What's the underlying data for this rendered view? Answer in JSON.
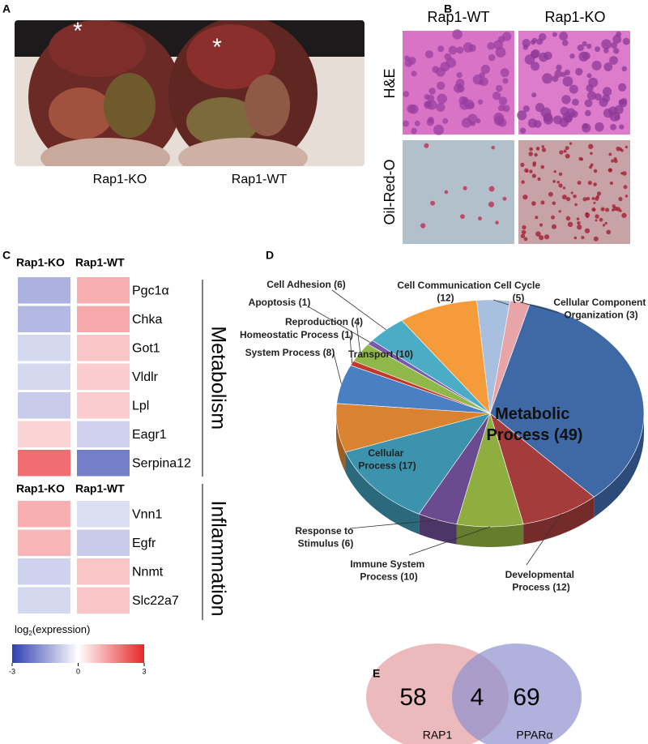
{
  "panel_a": {
    "letter": "A",
    "labels": [
      "Rap1-KO",
      "Rap1-WT"
    ],
    "markers": [
      "*",
      "*"
    ]
  },
  "panel_b": {
    "letter": "B",
    "columns": [
      "Rap1-WT",
      "Rap1-KO"
    ],
    "rows": [
      "H&E",
      "Oil-Red-O"
    ]
  },
  "panel_c": {
    "letter": "C",
    "groups": [
      {
        "name": "Metabolism",
        "columns": [
          "Rap1-KO",
          "Rap1-WT"
        ],
        "genes": [
          "Pgc1α",
          "Chka",
          "Got1",
          "Vldlr",
          "Lpl",
          "Eagr1",
          "Serpina12"
        ],
        "values": [
          [
            -1.2,
            1.1
          ],
          [
            -1.1,
            1.2
          ],
          [
            -0.6,
            0.8
          ],
          [
            -0.6,
            0.7
          ],
          [
            -0.8,
            0.7
          ],
          [
            0.6,
            -0.7
          ],
          [
            2.0,
            -2.0
          ]
        ]
      },
      {
        "name": "Inflammation",
        "columns": [
          "Rap1-KO",
          "Rap1-WT"
        ],
        "genes": [
          "Vnn1",
          "Egfr",
          "Nnmt",
          "Slc22a7"
        ],
        "values": [
          [
            1.1,
            -0.5
          ],
          [
            1.0,
            -0.8
          ],
          [
            -0.7,
            0.8
          ],
          [
            -0.6,
            0.8
          ]
        ]
      }
    ],
    "colorbar": {
      "label_parts": [
        "log",
        "2",
        "(expression)"
      ],
      "vlim": [
        -3,
        3
      ],
      "ticks": [
        -3,
        0,
        3
      ],
      "colors": [
        "#2f3fb0",
        "#ffffff",
        "#e8262a"
      ]
    }
  },
  "chart_data": {
    "type": "pie",
    "panel_label": "D",
    "categories": [
      "Metabolic Process (49)",
      "Developmental Process (12)",
      "Immune System Process (10)",
      "Response to Stimulus (6)",
      "Cellular Process (17)",
      "Transport (10)",
      "System Process (8)",
      "Homeostatic Process (1)",
      "Reproduction (4)",
      "Apoptosis (1)",
      "Cell Adhesion (6)",
      "Cell Communication (12)",
      "Cell Cycle (5)",
      "Cellular Component Organization (3)"
    ],
    "values": [
      49,
      12,
      10,
      6,
      17,
      10,
      8,
      1,
      4,
      1,
      6,
      12,
      5,
      3
    ],
    "colors": [
      "#3e68a6",
      "#a43c3c",
      "#8fae40",
      "#6a4b8f",
      "#3c93ad",
      "#d9822f",
      "#4a7fc4",
      "#c0392b",
      "#8fb74a",
      "#7a5aa8",
      "#4bacc6",
      "#f59b3a",
      "#a9bfe0",
      "#e8a5a8"
    ]
  },
  "panel_e": {
    "letter": "E",
    "sets": [
      "RAP1",
      "PPARα"
    ],
    "left_only": 58,
    "overlap": 4,
    "right_only": 69
  }
}
